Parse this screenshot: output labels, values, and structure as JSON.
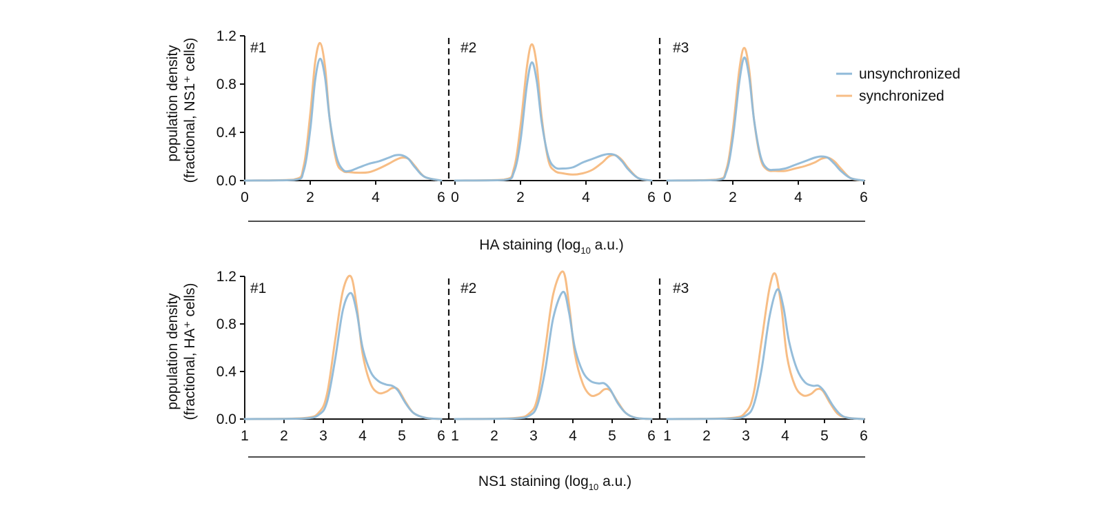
{
  "figure": {
    "legend": [
      {
        "label": "unsynchronized",
        "color": "#8fb9d8"
      },
      {
        "label": "synchronized",
        "color": "#f7bd85"
      }
    ]
  },
  "rows": [
    {
      "ylabel_line1": "population density",
      "ylabel_line2": "(fractional, NS1⁺ cells)",
      "xlabel_main": "HA staining (log",
      "xlabel_sub": "10",
      "xlabel_tail": " a.u.)",
      "yticks": [
        "0.0",
        "0.4",
        "0.8",
        "1.2"
      ],
      "xticks": [
        "0",
        "2",
        "4",
        "6"
      ],
      "replicates": [
        "#1",
        "#2",
        "#3"
      ]
    },
    {
      "ylabel_line1": "population density",
      "ylabel_line2": "(fractional, HA⁺ cells)",
      "xlabel_main": "NS1 staining (log",
      "xlabel_sub": "10",
      "xlabel_tail": " a.u.)",
      "yticks": [
        "0.0",
        "0.4",
        "0.8",
        "1.2"
      ],
      "xticks": [
        "1",
        "2",
        "3",
        "4",
        "5",
        "6"
      ],
      "replicates": [
        "#1",
        "#2",
        "#3"
      ]
    }
  ],
  "chart_data": [
    {
      "type": "line",
      "title": "",
      "xlabel": "HA staining (log10 a.u.)",
      "ylabel": "population density (fractional, NS1+ cells)",
      "xlim": [
        0,
        6
      ],
      "ylim": [
        0,
        1.2
      ],
      "panels": [
        {
          "name": "#1",
          "series": [
            {
              "name": "unsynchronized",
              "x": [
                0,
                1.5,
                1.8,
                2.0,
                2.15,
                2.3,
                2.45,
                2.6,
                2.8,
                3.0,
                3.2,
                3.5,
                3.8,
                4.1,
                4.4,
                4.6,
                4.8,
                5.0,
                5.2,
                5.5,
                6.0
              ],
              "y": [
                0,
                0.005,
                0.08,
                0.42,
                0.83,
                1.01,
                0.86,
                0.5,
                0.2,
                0.09,
                0.08,
                0.11,
                0.14,
                0.16,
                0.19,
                0.21,
                0.21,
                0.18,
                0.11,
                0.03,
                0
              ]
            },
            {
              "name": "synchronized",
              "x": [
                0,
                1.5,
                1.8,
                2.0,
                2.15,
                2.3,
                2.45,
                2.6,
                2.8,
                3.0,
                3.2,
                3.5,
                3.8,
                4.1,
                4.4,
                4.6,
                4.8,
                5.0,
                5.2,
                5.5,
                6.0
              ],
              "y": [
                0,
                0.008,
                0.12,
                0.55,
                0.98,
                1.14,
                0.95,
                0.5,
                0.16,
                0.08,
                0.07,
                0.065,
                0.07,
                0.1,
                0.14,
                0.17,
                0.19,
                0.18,
                0.12,
                0.03,
                0
              ]
            }
          ]
        },
        {
          "name": "#2",
          "series": [
            {
              "name": "unsynchronized",
              "x": [
                0,
                1.5,
                1.8,
                2.0,
                2.2,
                2.35,
                2.5,
                2.65,
                2.85,
                3.05,
                3.3,
                3.6,
                3.9,
                4.2,
                4.5,
                4.7,
                4.9,
                5.1,
                5.3,
                5.6,
                6.0
              ],
              "y": [
                0,
                0.005,
                0.07,
                0.33,
                0.8,
                0.98,
                0.82,
                0.48,
                0.2,
                0.11,
                0.1,
                0.11,
                0.15,
                0.18,
                0.21,
                0.22,
                0.21,
                0.16,
                0.09,
                0.02,
                0
              ]
            },
            {
              "name": "synchronized",
              "x": [
                0,
                1.5,
                1.8,
                2.0,
                2.2,
                2.35,
                2.5,
                2.65,
                2.85,
                3.05,
                3.3,
                3.6,
                3.9,
                4.2,
                4.5,
                4.7,
                4.9,
                5.1,
                5.3,
                5.6,
                6.0
              ],
              "y": [
                0,
                0.008,
                0.1,
                0.45,
                0.95,
                1.13,
                0.95,
                0.52,
                0.17,
                0.08,
                0.06,
                0.05,
                0.06,
                0.09,
                0.15,
                0.2,
                0.21,
                0.17,
                0.1,
                0.02,
                0
              ]
            }
          ]
        },
        {
          "name": "#3",
          "series": [
            {
              "name": "unsynchronized",
              "x": [
                0,
                1.5,
                1.8,
                2.0,
                2.2,
                2.35,
                2.5,
                2.65,
                2.85,
                3.05,
                3.3,
                3.6,
                3.9,
                4.2,
                4.5,
                4.7,
                4.9,
                5.1,
                5.3,
                5.6,
                6.0
              ],
              "y": [
                0,
                0.005,
                0.07,
                0.35,
                0.82,
                1.02,
                0.86,
                0.5,
                0.2,
                0.1,
                0.09,
                0.1,
                0.13,
                0.16,
                0.19,
                0.2,
                0.19,
                0.14,
                0.08,
                0.02,
                0
              ]
            },
            {
              "name": "synchronized",
              "x": [
                0,
                1.5,
                1.8,
                2.0,
                2.2,
                2.35,
                2.5,
                2.65,
                2.85,
                3.05,
                3.3,
                3.6,
                3.9,
                4.2,
                4.5,
                4.7,
                4.9,
                5.1,
                5.3,
                5.6,
                6.0
              ],
              "y": [
                0,
                0.008,
                0.09,
                0.42,
                0.92,
                1.1,
                0.92,
                0.5,
                0.18,
                0.09,
                0.08,
                0.08,
                0.1,
                0.12,
                0.15,
                0.18,
                0.19,
                0.16,
                0.1,
                0.02,
                0
              ]
            }
          ]
        }
      ],
      "grid": false,
      "legend_position": "top-right"
    },
    {
      "type": "line",
      "title": "",
      "xlabel": "NS1 staining (log10 a.u.)",
      "ylabel": "population density (fractional, HA+ cells)",
      "xlim": [
        1,
        6
      ],
      "ylim": [
        0,
        1.2
      ],
      "panels": [
        {
          "name": "#1",
          "series": [
            {
              "name": "unsynchronized",
              "x": [
                1,
                2.5,
                2.9,
                3.1,
                3.3,
                3.5,
                3.7,
                3.85,
                4.0,
                4.2,
                4.4,
                4.6,
                4.75,
                4.9,
                5.1,
                5.3,
                5.6,
                6.0
              ],
              "y": [
                0,
                0.005,
                0.04,
                0.15,
                0.5,
                0.92,
                1.06,
                0.9,
                0.6,
                0.4,
                0.32,
                0.29,
                0.28,
                0.24,
                0.13,
                0.05,
                0.01,
                0
              ]
            },
            {
              "name": "synchronized",
              "x": [
                1,
                2.5,
                2.9,
                3.1,
                3.3,
                3.5,
                3.7,
                3.85,
                4.0,
                4.2,
                4.4,
                4.6,
                4.75,
                4.9,
                5.1,
                5.3,
                5.6,
                6.0
              ],
              "y": [
                0,
                0.008,
                0.06,
                0.22,
                0.66,
                1.08,
                1.2,
                0.95,
                0.55,
                0.3,
                0.22,
                0.23,
                0.26,
                0.25,
                0.14,
                0.05,
                0.01,
                0
              ]
            }
          ]
        },
        {
          "name": "#2",
          "series": [
            {
              "name": "unsynchronized",
              "x": [
                1,
                2.5,
                2.9,
                3.1,
                3.3,
                3.5,
                3.75,
                3.9,
                4.05,
                4.25,
                4.45,
                4.65,
                4.8,
                4.95,
                5.15,
                5.35,
                5.6,
                6.0
              ],
              "y": [
                0,
                0.005,
                0.03,
                0.12,
                0.42,
                0.85,
                1.07,
                0.9,
                0.6,
                0.4,
                0.32,
                0.3,
                0.3,
                0.25,
                0.13,
                0.05,
                0.01,
                0
              ]
            },
            {
              "name": "synchronized",
              "x": [
                1,
                2.5,
                2.9,
                3.1,
                3.3,
                3.5,
                3.75,
                3.9,
                4.05,
                4.25,
                4.45,
                4.65,
                4.8,
                4.95,
                5.15,
                5.35,
                5.6,
                6.0
              ],
              "y": [
                0,
                0.008,
                0.05,
                0.18,
                0.6,
                1.05,
                1.24,
                0.97,
                0.55,
                0.3,
                0.2,
                0.21,
                0.25,
                0.24,
                0.14,
                0.05,
                0.01,
                0
              ]
            }
          ]
        },
        {
          "name": "#3",
          "series": [
            {
              "name": "unsynchronized",
              "x": [
                1,
                2.6,
                3.0,
                3.2,
                3.4,
                3.6,
                3.8,
                3.95,
                4.1,
                4.3,
                4.5,
                4.7,
                4.85,
                5.0,
                5.2,
                5.4,
                5.6,
                6.0
              ],
              "y": [
                0,
                0.005,
                0.03,
                0.12,
                0.42,
                0.86,
                1.09,
                0.95,
                0.65,
                0.42,
                0.31,
                0.28,
                0.28,
                0.23,
                0.12,
                0.04,
                0.01,
                0
              ]
            },
            {
              "name": "synchronized",
              "x": [
                1,
                2.6,
                3.0,
                3.2,
                3.4,
                3.6,
                3.75,
                3.9,
                4.05,
                4.25,
                4.45,
                4.65,
                4.8,
                4.95,
                5.15,
                5.35,
                5.6,
                6.0
              ],
              "y": [
                0,
                0.008,
                0.06,
                0.22,
                0.66,
                1.1,
                1.22,
                0.95,
                0.52,
                0.28,
                0.2,
                0.21,
                0.25,
                0.24,
                0.13,
                0.04,
                0.01,
                0
              ]
            }
          ]
        }
      ],
      "grid": false,
      "legend_position": "top-right"
    }
  ]
}
